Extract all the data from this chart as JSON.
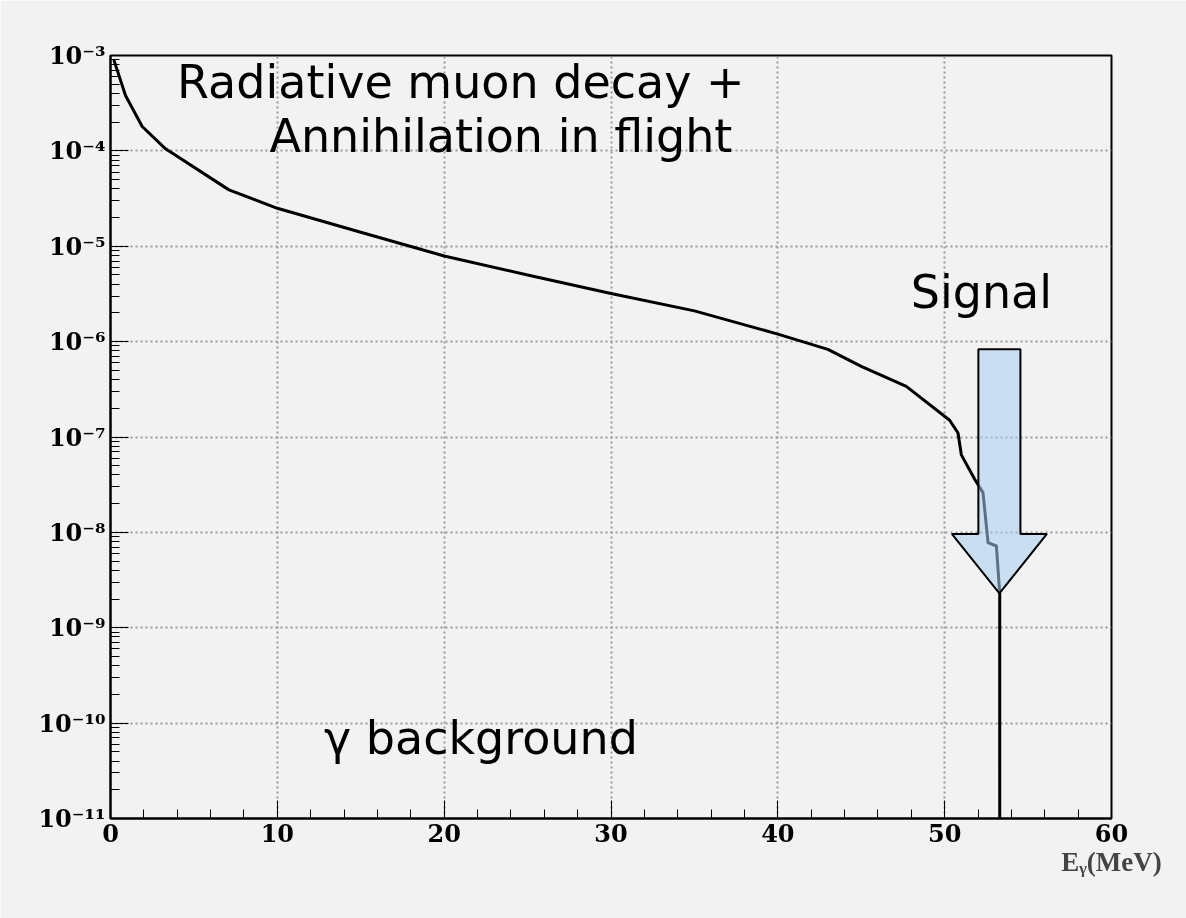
{
  "chart_data": {
    "type": "line",
    "xlabel": "Eᵧ(MeV)",
    "x": [
      0.2,
      0.9,
      1.9,
      3.3,
      7.1,
      10,
      15,
      20,
      25,
      30,
      35,
      40,
      43,
      45,
      47.7,
      50.3,
      50.8,
      51,
      51.8,
      52.3,
      52.6,
      53.1,
      53.3,
      53.3
    ],
    "series": [
      {
        "color": "#000000",
        "values": [
          0.0009,
          0.00038,
          0.00018,
          0.000105,
          3.9e-05,
          2.5e-05,
          1.4e-05,
          7.9e-06,
          5e-06,
          3.2e-06,
          2.1e-06,
          1.2e-06,
          8.3e-07,
          5.5e-07,
          3.4e-07,
          1.5e-07,
          1.1e-07,
          6.5e-08,
          3.6e-08,
          2.6e-08,
          7.8e-09,
          7.2e-09,
          2.3e-09,
          1e-11
        ]
      }
    ],
    "log": "y",
    "xlim": [
      0,
      60
    ],
    "xticks": [
      0,
      10,
      20,
      30,
      40,
      50,
      60
    ],
    "ylim": [
      1e-11,
      0.001
    ],
    "yticks": [
      {
        "value": 1e-11,
        "label": "10⁻¹¹"
      },
      {
        "value": 1e-10,
        "label": "10⁻¹⁰"
      },
      {
        "value": 1e-09,
        "label": "10⁻⁹"
      },
      {
        "value": 1e-08,
        "label": "10⁻⁸"
      },
      {
        "value": 1e-07,
        "label": "10⁻⁷"
      },
      {
        "value": 1e-06,
        "label": "10⁻⁶"
      },
      {
        "value": 1e-05,
        "label": "10⁻⁵"
      },
      {
        "value": 0.0001,
        "label": "10⁻⁴"
      },
      {
        "value": 0.001,
        "label": "10⁻³"
      }
    ],
    "grid": true,
    "annotations": [
      "Radiative muon decay +",
      "Annihilation in flight",
      "γ background",
      "Signal"
    ]
  }
}
